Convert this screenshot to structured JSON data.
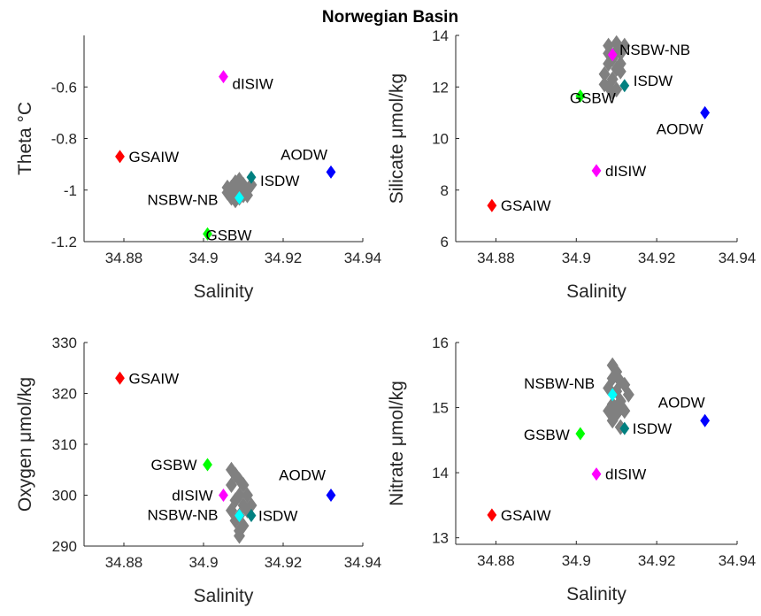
{
  "figure": {
    "title": "Norwegian Basin"
  },
  "chart_data": [
    {
      "type": "scatter",
      "xlabel": "Salinity",
      "ylabel": "Theta °C",
      "xlim": [
        34.87,
        34.94
      ],
      "ylim": [
        -1.2,
        -0.4
      ],
      "xticks": [
        "34.88",
        "34.9",
        "34.92",
        "34.94"
      ],
      "yticks": [
        "-1.2",
        "-1",
        "-0.8",
        "-0.6"
      ],
      "grid": false,
      "background_points": [
        {
          "x": 34.906,
          "y": -1.01
        },
        {
          "x": 34.907,
          "y": -0.99
        },
        {
          "x": 34.908,
          "y": -1.02
        },
        {
          "x": 34.909,
          "y": -1.0
        },
        {
          "x": 34.91,
          "y": -0.98
        },
        {
          "x": 34.907,
          "y": -1.03
        },
        {
          "x": 34.909,
          "y": -1.03
        },
        {
          "x": 34.911,
          "y": -1.0
        },
        {
          "x": 34.908,
          "y": -0.97
        },
        {
          "x": 34.906,
          "y": -0.99
        },
        {
          "x": 34.91,
          "y": -1.02
        },
        {
          "x": 34.912,
          "y": -0.98
        },
        {
          "x": 34.909,
          "y": -0.96
        },
        {
          "x": 34.907,
          "y": -1.01
        },
        {
          "x": 34.911,
          "y": -1.02
        },
        {
          "x": 34.908,
          "y": -1.04
        }
      ],
      "points": [
        {
          "label": "GSAIW",
          "x": 34.879,
          "y": -0.87,
          "color": "#ff0000"
        },
        {
          "label": "dISIW",
          "x": 34.905,
          "y": -0.56,
          "color": "#ff00ff"
        },
        {
          "label": "ISDW",
          "x": 34.912,
          "y": -0.95,
          "color": "#008080"
        },
        {
          "label": "NSBW-NB",
          "x": 34.909,
          "y": -1.03,
          "color": "#00ffff"
        },
        {
          "label": "GSBW",
          "x": 34.901,
          "y": -1.17,
          "color": "#00ff00"
        },
        {
          "label": "AODW",
          "x": 34.932,
          "y": -0.93,
          "color": "#0000ff"
        }
      ]
    },
    {
      "type": "scatter",
      "xlabel": "Salinity",
      "ylabel": "Silicate μmol/kg",
      "xlim": [
        34.87,
        34.94
      ],
      "ylim": [
        6,
        14
      ],
      "xticks": [
        "34.88",
        "34.9",
        "34.92",
        "34.94"
      ],
      "yticks": [
        "6",
        "8",
        "10",
        "12",
        "14"
      ],
      "grid": false,
      "background_points": [
        {
          "x": 34.908,
          "y": 13.6
        },
        {
          "x": 34.91,
          "y": 13.4
        },
        {
          "x": 34.909,
          "y": 13.1
        },
        {
          "x": 34.911,
          "y": 13.3
        },
        {
          "x": 34.912,
          "y": 13.6
        },
        {
          "x": 34.908,
          "y": 12.9
        },
        {
          "x": 34.91,
          "y": 12.7
        },
        {
          "x": 34.907,
          "y": 12.5
        },
        {
          "x": 34.909,
          "y": 12.3
        },
        {
          "x": 34.911,
          "y": 12.6
        },
        {
          "x": 34.908,
          "y": 12.0
        },
        {
          "x": 34.91,
          "y": 11.9
        },
        {
          "x": 34.907,
          "y": 12.1
        },
        {
          "x": 34.909,
          "y": 11.8
        },
        {
          "x": 34.911,
          "y": 12.9
        },
        {
          "x": 34.91,
          "y": 13.7
        },
        {
          "x": 34.908,
          "y": 13.3
        }
      ],
      "points": [
        {
          "label": "NSBW-NB",
          "x": 34.909,
          "y": 13.25,
          "color": "#ff00ff"
        },
        {
          "label": "GSBW",
          "x": 34.901,
          "y": 11.65,
          "color": "#00ff00"
        },
        {
          "label": "ISDW",
          "x": 34.912,
          "y": 12.05,
          "color": "#008080"
        },
        {
          "label": "AODW",
          "x": 34.932,
          "y": 11.0,
          "color": "#0000ff"
        },
        {
          "label": "dISIW",
          "x": 34.905,
          "y": 8.75,
          "color": "#ff00ff"
        },
        {
          "label": "GSAIW",
          "x": 34.879,
          "y": 7.4,
          "color": "#ff0000"
        }
      ]
    },
    {
      "type": "scatter",
      "xlabel": "Salinity",
      "ylabel": "Oxygen μmol/kg",
      "xlim": [
        34.87,
        34.94
      ],
      "ylim": [
        290,
        330
      ],
      "xticks": [
        "34.88",
        "34.9",
        "34.92",
        "34.94"
      ],
      "yticks": [
        "290",
        "300",
        "310",
        "320",
        "330"
      ],
      "grid": false,
      "background_points": [
        {
          "x": 34.907,
          "y": 305
        },
        {
          "x": 34.908,
          "y": 304
        },
        {
          "x": 34.909,
          "y": 303
        },
        {
          "x": 34.907,
          "y": 302
        },
        {
          "x": 34.91,
          "y": 302
        },
        {
          "x": 34.909,
          "y": 300
        },
        {
          "x": 34.911,
          "y": 300
        },
        {
          "x": 34.908,
          "y": 299
        },
        {
          "x": 34.91,
          "y": 298
        },
        {
          "x": 34.907,
          "y": 297
        },
        {
          "x": 34.909,
          "y": 296
        },
        {
          "x": 34.911,
          "y": 297
        },
        {
          "x": 34.908,
          "y": 295
        },
        {
          "x": 34.91,
          "y": 294
        },
        {
          "x": 34.909,
          "y": 293
        },
        {
          "x": 34.909,
          "y": 292
        },
        {
          "x": 34.912,
          "y": 298
        }
      ],
      "points": [
        {
          "label": "GSAIW",
          "x": 34.879,
          "y": 323,
          "color": "#ff0000"
        },
        {
          "label": "GSBW",
          "x": 34.901,
          "y": 306,
          "color": "#00ff00"
        },
        {
          "label": "dISIW",
          "x": 34.905,
          "y": 300,
          "color": "#ff00ff"
        },
        {
          "label": "AODW",
          "x": 34.932,
          "y": 300,
          "color": "#0000ff"
        },
        {
          "label": "NSBW-NB",
          "x": 34.909,
          "y": 296,
          "color": "#00ffff"
        },
        {
          "label": "ISDW",
          "x": 34.912,
          "y": 296,
          "color": "#008080"
        }
      ]
    },
    {
      "type": "scatter",
      "xlabel": "Salinity",
      "ylabel": "Nitrate μmol/kg",
      "xlim": [
        34.87,
        34.94
      ],
      "ylim": [
        12.9,
        16
      ],
      "xticks": [
        "34.88",
        "34.9",
        "34.92",
        "34.94"
      ],
      "yticks": [
        "13",
        "14",
        "15",
        "16"
      ],
      "grid": false,
      "background_points": [
        {
          "x": 34.909,
          "y": 15.65
        },
        {
          "x": 34.91,
          "y": 15.55
        },
        {
          "x": 34.909,
          "y": 15.45
        },
        {
          "x": 34.911,
          "y": 15.4
        },
        {
          "x": 34.908,
          "y": 15.3
        },
        {
          "x": 34.91,
          "y": 15.25
        },
        {
          "x": 34.912,
          "y": 15.35
        },
        {
          "x": 34.909,
          "y": 15.05
        },
        {
          "x": 34.911,
          "y": 15.1
        },
        {
          "x": 34.908,
          "y": 14.95
        },
        {
          "x": 34.91,
          "y": 14.9
        },
        {
          "x": 34.912,
          "y": 14.95
        },
        {
          "x": 34.909,
          "y": 14.8
        },
        {
          "x": 34.911,
          "y": 14.7
        },
        {
          "x": 34.913,
          "y": 15.2
        },
        {
          "x": 34.91,
          "y": 15.0
        }
      ],
      "points": [
        {
          "label": "NSBW-NB",
          "x": 34.909,
          "y": 15.2,
          "color": "#00ffff"
        },
        {
          "label": "AODW",
          "x": 34.932,
          "y": 14.8,
          "color": "#0000ff"
        },
        {
          "label": "ISDW",
          "x": 34.912,
          "y": 14.68,
          "color": "#008080"
        },
        {
          "label": "GSBW",
          "x": 34.901,
          "y": 14.6,
          "color": "#00ff00"
        },
        {
          "label": "dISIW",
          "x": 34.905,
          "y": 13.98,
          "color": "#ff00ff"
        },
        {
          "label": "GSAIW",
          "x": 34.879,
          "y": 13.35,
          "color": "#ff0000"
        }
      ]
    }
  ]
}
